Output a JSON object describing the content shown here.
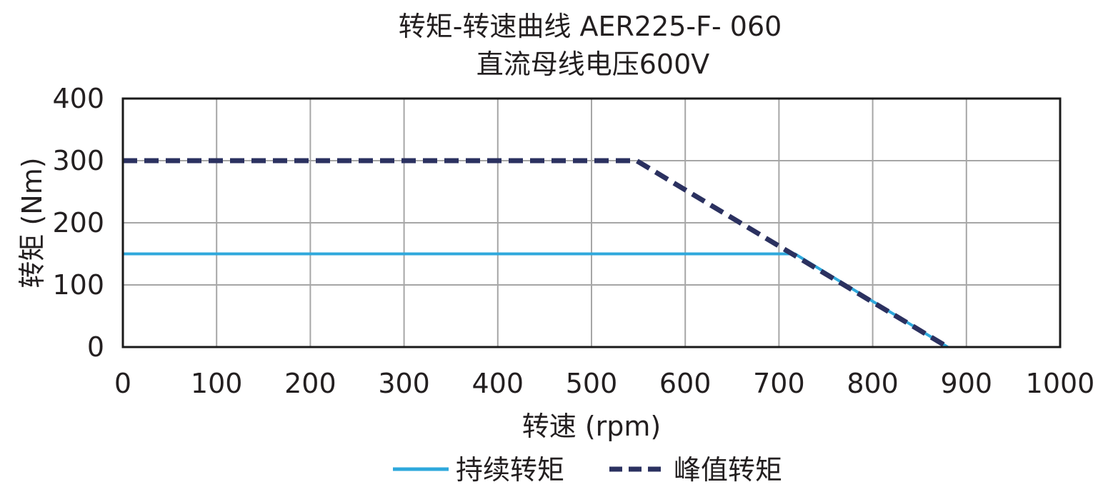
{
  "chart_data": {
    "type": "line",
    "title": "转矩-转速曲线 AER225-F- 060",
    "subtitle": "直流母线电压600V",
    "xlabel": "转速 (rpm)",
    "ylabel": "转矩 (Nm)",
    "xlim": [
      0,
      1000
    ],
    "ylim": [
      0,
      400
    ],
    "xticks": [
      0,
      100,
      200,
      300,
      400,
      500,
      600,
      700,
      800,
      900,
      1000
    ],
    "yticks": [
      0,
      100,
      200,
      300,
      400
    ],
    "grid": true,
    "legend_position": "bottom",
    "series": [
      {
        "name": "持续转矩",
        "color": "#2ea8dc",
        "style": "solid",
        "x": [
          0,
          717,
          880
        ],
        "y": [
          150,
          150,
          0
        ]
      },
      {
        "name": "峰值转矩",
        "color": "#2b3160",
        "style": "dashed",
        "x": [
          0,
          548,
          880
        ],
        "y": [
          300,
          300,
          0
        ]
      }
    ]
  }
}
